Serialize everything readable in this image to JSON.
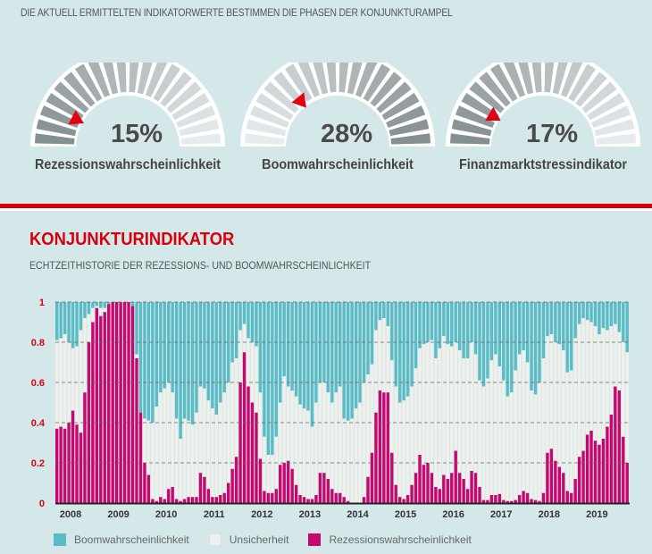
{
  "header": {
    "note": "DIE AKTUELL ERMITTELTEN INDIKATORWERTE BESTIMMEN DIE PHASEN DER KONJUNKTURAMPEL"
  },
  "gauges": [
    {
      "label": "Rezessionswahrscheinlichkeit",
      "value_text": "15%",
      "value": 15,
      "gradient": "dark-to-light"
    },
    {
      "label": "Boomwahrscheinlichkeit",
      "value_text": "28%",
      "value": 28,
      "gradient": "light-to-dark"
    },
    {
      "label": "Finanzmarktstressindikator",
      "value_text": "17%",
      "value": 17,
      "gradient": "dark-to-light"
    }
  ],
  "colors": {
    "background": "#d4e8ea",
    "accent_red": "#d9000d",
    "marker": "#e3000f",
    "gauge_dark": "#858e91",
    "gauge_light": "#e6eced"
  },
  "section": {
    "title": "KONJUNKTURINDIKATOR",
    "subtitle": "ECHTZEITHISTORIE DER REZESSIONS- UND BOOMWAHRSCHEINLICHKEIT"
  },
  "chart_data": {
    "type": "bar",
    "stacked": true,
    "frequency": "monthly",
    "start": "2008-01",
    "end": "2019-12",
    "ylim": [
      0,
      1
    ],
    "yticks": [
      "0",
      "0.2",
      "0.4",
      "0.6",
      "0.8",
      "1"
    ],
    "xticks": [
      "2008",
      "2009",
      "2010",
      "2011",
      "2012",
      "2013",
      "2014",
      "2015",
      "2016",
      "2017",
      "2018",
      "2019"
    ],
    "grid": "horizontal dashed",
    "legend_position": "bottom-left",
    "series": [
      {
        "name": "Boomwahrscheinlichkeit",
        "color": "#5cbcc6",
        "position": "top",
        "values": [
          0.19,
          0.18,
          0.16,
          0.2,
          0.23,
          0.22,
          0.14,
          0.08,
          0.06,
          0.03,
          0.02,
          0.03,
          0.03,
          0.01,
          0,
          0,
          0,
          0,
          0,
          0.02,
          0.26,
          0.55,
          0.58,
          0.59,
          0.6,
          0.52,
          0.45,
          0.43,
          0.4,
          0.45,
          0.58,
          0.68,
          0.58,
          0.59,
          0.61,
          0.55,
          0.42,
          0.43,
          0.49,
          0.53,
          0.56,
          0.5,
          0.45,
          0.4,
          0.3,
          0.28,
          0.14,
          0.11,
          0.18,
          0.2,
          0.22,
          0.45,
          0.67,
          0.76,
          0.76,
          0.67,
          0.5,
          0.37,
          0.42,
          0.44,
          0.47,
          0.51,
          0.53,
          0.54,
          0.62,
          0.5,
          0.4,
          0.4,
          0.45,
          0.5,
          0.45,
          0.42,
          0.58,
          0.59,
          0.58,
          0.53,
          0.5,
          0.4,
          0.36,
          0.31,
          0.14,
          0.09,
          0.08,
          0.12,
          0.29,
          0.42,
          0.5,
          0.49,
          0.47,
          0.42,
          0.33,
          0.23,
          0.21,
          0.2,
          0.19,
          0.28,
          0.23,
          0.17,
          0.21,
          0.22,
          0.2,
          0.24,
          0.28,
          0.28,
          0.2,
          0.26,
          0.39,
          0.42,
          0.38,
          0.29,
          0.26,
          0.32,
          0.39,
          0.47,
          0.45,
          0.34,
          0.26,
          0.24,
          0.3,
          0.44,
          0.46,
          0.4,
          0.28,
          0.17,
          0.16,
          0.2,
          0.21,
          0.24,
          0.35,
          0.34,
          0.18,
          0.11,
          0.08,
          0.09,
          0.1,
          0.12,
          0.16,
          0.13,
          0.14,
          0.12,
          0.11,
          0.15,
          0.2,
          0.25
        ]
      },
      {
        "name": "Unsicherheit",
        "color": "#eff0ec",
        "position": "middle",
        "values": "remainder to 1"
      },
      {
        "name": "Rezessionswahrscheinlichkeit",
        "color": "#c7076e",
        "position": "bottom",
        "values": [
          0.37,
          0.38,
          0.37,
          0.4,
          0.46,
          0.39,
          0.35,
          0.55,
          0.8,
          0.9,
          0.97,
          0.93,
          0.95,
          0.99,
          1,
          1,
          1,
          1,
          1,
          0.98,
          0.72,
          0.45,
          0.2,
          0.14,
          0.02,
          0.01,
          0.03,
          0.02,
          0.07,
          0.08,
          0.02,
          0.01,
          0.02,
          0.03,
          0.03,
          0.03,
          0.15,
          0.13,
          0.07,
          0.03,
          0.03,
          0.04,
          0.05,
          0.1,
          0.17,
          0.23,
          0.6,
          0.75,
          0.58,
          0.5,
          0.45,
          0.22,
          0.06,
          0.05,
          0.05,
          0.07,
          0.19,
          0.2,
          0.21,
          0.17,
          0.09,
          0.04,
          0.03,
          0.02,
          0.02,
          0.04,
          0.15,
          0.15,
          0.12,
          0.07,
          0.05,
          0.05,
          0.03,
          0.01,
          0,
          0,
          0,
          0.03,
          0.13,
          0.25,
          0.45,
          0.56,
          0.55,
          0.55,
          0.25,
          0.09,
          0.03,
          0.02,
          0.04,
          0.09,
          0.15,
          0.24,
          0.19,
          0.2,
          0.15,
          0.08,
          0.07,
          0.14,
          0.12,
          0.15,
          0.26,
          0.15,
          0.12,
          0.07,
          0.16,
          0.15,
          0.08,
          0.015,
          0.015,
          0.04,
          0.04,
          0.045,
          0.015,
          0.01,
          0.01,
          0.015,
          0.04,
          0.06,
          0.05,
          0.02,
          0.015,
          0.01,
          0.05,
          0.25,
          0.27,
          0.21,
          0.18,
          0.15,
          0.06,
          0.05,
          0.12,
          0.23,
          0.26,
          0.34,
          0.36,
          0.31,
          0.29,
          0.32,
          0.38,
          0.44,
          0.58,
          0.56,
          0.33,
          0.2
        ]
      }
    ]
  }
}
